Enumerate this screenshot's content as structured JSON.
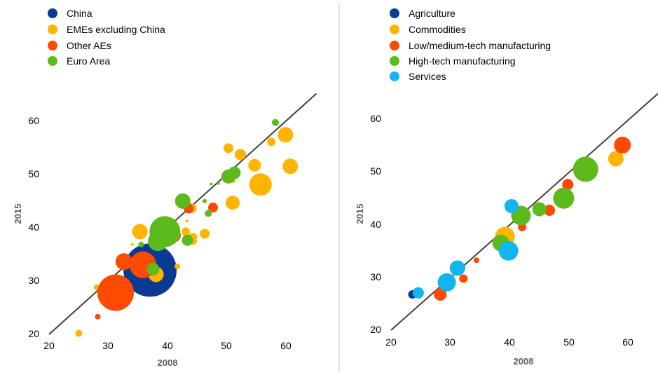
{
  "colors": {
    "china": "#0a3a94",
    "emes": "#ffb400",
    "other_aes": "#ff4a00",
    "euro_area": "#5dba1c",
    "agriculture": "#0a3a94",
    "commodities": "#ffb400",
    "low_tech": "#ff4a00",
    "high_tech": "#5dba1c",
    "services": "#14b4ee",
    "diagonal": "#404040",
    "divider": "#c8c8c8"
  },
  "chart_data": [
    {
      "type": "scatter",
      "title": "",
      "xlabel": "2008",
      "ylabel": "2015",
      "xlim": [
        20,
        65
      ],
      "ylim": [
        20,
        65
      ],
      "x_ticks": [
        "20",
        "30",
        "40",
        "50",
        "60"
      ],
      "y_ticks": [
        "20",
        "30",
        "40",
        "50",
        "60"
      ],
      "reference_line": "45-degree diagonal",
      "legend": "top-left",
      "series": [
        {
          "name": "China",
          "color_key": "china",
          "points": [
            {
              "x": 37,
              "y": 32,
              "size": 38
            }
          ]
        },
        {
          "name": "EMEs excluding China",
          "color_key": "emes",
          "points": [
            {
              "x": 59.8,
              "y": 57.3,
              "size": 11
            },
            {
              "x": 57.4,
              "y": 56,
              "size": 6
            },
            {
              "x": 50.2,
              "y": 54.8,
              "size": 7
            },
            {
              "x": 52.2,
              "y": 53.6,
              "size": 8
            },
            {
              "x": 54.6,
              "y": 51.6,
              "size": 9
            },
            {
              "x": 60.6,
              "y": 51.4,
              "size": 11
            },
            {
              "x": 55.6,
              "y": 48,
              "size": 16
            },
            {
              "x": 51,
              "y": 48.7,
              "size": 3
            },
            {
              "x": 50.9,
              "y": 44.6,
              "size": 10
            },
            {
              "x": 44,
              "y": 43.6,
              "size": 7
            },
            {
              "x": 35.3,
              "y": 39.2,
              "size": 11
            },
            {
              "x": 43,
              "y": 39.2,
              "size": 6
            },
            {
              "x": 46.2,
              "y": 38.8,
              "size": 7
            },
            {
              "x": 44.2,
              "y": 38.2,
              "size": 6
            },
            {
              "x": 44.3,
              "y": 37.4,
              "size": 5
            },
            {
              "x": 43.2,
              "y": 41.2,
              "size": 2
            },
            {
              "x": 34,
              "y": 36.8,
              "size": 2
            },
            {
              "x": 38,
              "y": 31.2,
              "size": 11
            },
            {
              "x": 41.6,
              "y": 32.7,
              "size": 4
            },
            {
              "x": 28,
              "y": 28.8,
              "size": 4
            },
            {
              "x": 25,
              "y": 20.2,
              "size": 5
            }
          ]
        },
        {
          "name": "Other AEs",
          "color_key": "other_aes",
          "points": [
            {
              "x": 31.2,
              "y": 27.8,
              "size": 26
            },
            {
              "x": 32.6,
              "y": 33.6,
              "size": 12
            },
            {
              "x": 35.8,
              "y": 33,
              "size": 19
            },
            {
              "x": 41,
              "y": 38.5,
              "size": 10
            },
            {
              "x": 43.5,
              "y": 43.5,
              "size": 7
            },
            {
              "x": 47.6,
              "y": 43.7,
              "size": 7
            },
            {
              "x": 28.2,
              "y": 23.3,
              "size": 4
            }
          ]
        },
        {
          "name": "Euro Area",
          "color_key": "euro_area",
          "points": [
            {
              "x": 39.5,
              "y": 39.2,
              "size": 22
            },
            {
              "x": 38.3,
              "y": 37.4,
              "size": 14
            },
            {
              "x": 42.5,
              "y": 44.9,
              "size": 11
            },
            {
              "x": 43.3,
              "y": 37.6,
              "size": 8
            },
            {
              "x": 46.8,
              "y": 42.6,
              "size": 5
            },
            {
              "x": 46.2,
              "y": 44.9,
              "size": 3
            },
            {
              "x": 47.3,
              "y": 48.1,
              "size": 2
            },
            {
              "x": 48.5,
              "y": 48.2,
              "size": 2
            },
            {
              "x": 50.2,
              "y": 49.5,
              "size": 10
            },
            {
              "x": 51.2,
              "y": 50.2,
              "size": 9
            },
            {
              "x": 58.1,
              "y": 59.6,
              "size": 5
            },
            {
              "x": 35.5,
              "y": 36.8,
              "size": 4
            },
            {
              "x": 37.5,
              "y": 32.2,
              "size": 9
            }
          ]
        }
      ]
    },
    {
      "type": "scatter",
      "title": "",
      "xlabel": "2008",
      "ylabel": "2015",
      "xlim": [
        20,
        65
      ],
      "ylim": [
        20,
        65
      ],
      "x_ticks": [
        "20",
        "30",
        "40",
        "50",
        "60"
      ],
      "y_ticks": [
        "20",
        "30",
        "40",
        "50",
        "60"
      ],
      "reference_line": "45-degree diagonal",
      "legend": "top-left",
      "series": [
        {
          "name": "Agriculture",
          "color_key": "agriculture",
          "points": [
            {
              "x": 23.6,
              "y": 26.8,
              "size": 6
            }
          ]
        },
        {
          "name": "Commodities",
          "color_key": "commodities",
          "points": [
            {
              "x": 39.2,
              "y": 37.8,
              "size": 14
            },
            {
              "x": 57.9,
              "y": 52.6,
              "size": 11
            }
          ]
        },
        {
          "name": "Low/medium-tech manufacturing",
          "color_key": "low_tech",
          "points": [
            {
              "x": 28.3,
              "y": 26.8,
              "size": 9
            },
            {
              "x": 32.2,
              "y": 29.8,
              "size": 6
            },
            {
              "x": 34.4,
              "y": 33.3,
              "size": 4
            },
            {
              "x": 42.1,
              "y": 39.6,
              "size": 6
            },
            {
              "x": 46.7,
              "y": 42.8,
              "size": 8
            },
            {
              "x": 49.8,
              "y": 47.7,
              "size": 8
            },
            {
              "x": 59,
              "y": 55.2,
              "size": 12
            }
          ]
        },
        {
          "name": "High-tech manufacturing",
          "color_key": "high_tech",
          "points": [
            {
              "x": 38.5,
              "y": 36.6,
              "size": 12
            },
            {
              "x": 41.9,
              "y": 41.8,
              "size": 14
            },
            {
              "x": 45,
              "y": 43,
              "size": 10
            },
            {
              "x": 49.1,
              "y": 45.1,
              "size": 15
            },
            {
              "x": 52.8,
              "y": 50.6,
              "size": 18
            }
          ]
        },
        {
          "name": "Services",
          "color_key": "services",
          "points": [
            {
              "x": 24.6,
              "y": 27.1,
              "size": 8
            },
            {
              "x": 29.4,
              "y": 29.1,
              "size": 13
            },
            {
              "x": 31.2,
              "y": 31.8,
              "size": 11
            },
            {
              "x": 39.8,
              "y": 35.1,
              "size": 14
            },
            {
              "x": 40.3,
              "y": 43.6,
              "size": 10
            }
          ]
        }
      ]
    }
  ]
}
